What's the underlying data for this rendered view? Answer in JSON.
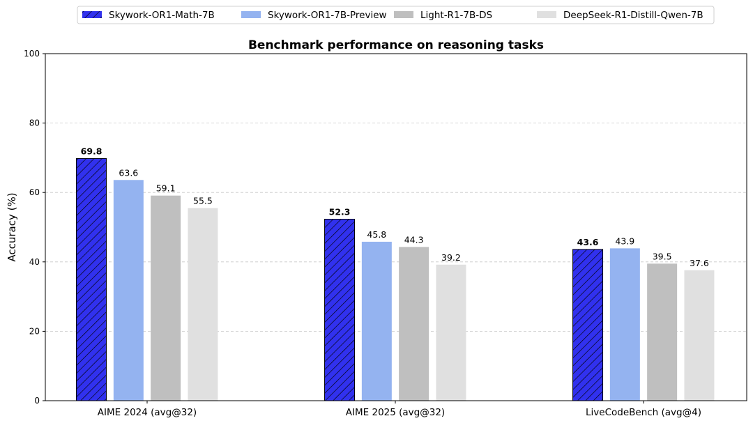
{
  "chart_data": {
    "type": "bar",
    "title": "Benchmark performance on reasoning tasks",
    "xlabel": "",
    "ylabel": "Accuracy (%)",
    "ylim": [
      0,
      100
    ],
    "yticks": [
      0,
      20,
      40,
      60,
      80,
      100
    ],
    "grid": "y-dashed",
    "legend_placement": "top-center",
    "categories": [
      "AIME 2024 (avg@32)",
      "AIME 2025 (avg@32)",
      "LiveCodeBench (avg@4)"
    ],
    "series": [
      {
        "name": "Skywork-OR1-Math-7B",
        "values": [
          69.8,
          52.3,
          43.6
        ],
        "color": "#3131ee",
        "hatch": "///",
        "bold_labels": true
      },
      {
        "name": "Skywork-OR1-7B-Preview",
        "values": [
          63.6,
          45.8,
          43.9
        ],
        "color": "#94b3f0"
      },
      {
        "name": "Light-R1-7B-DS",
        "values": [
          59.1,
          44.3,
          39.5
        ],
        "color": "#bfbfbf"
      },
      {
        "name": "DeepSeek-R1-Distill-Qwen-7B",
        "values": [
          55.5,
          39.2,
          37.6
        ],
        "color": "#e0e0e0"
      }
    ]
  }
}
